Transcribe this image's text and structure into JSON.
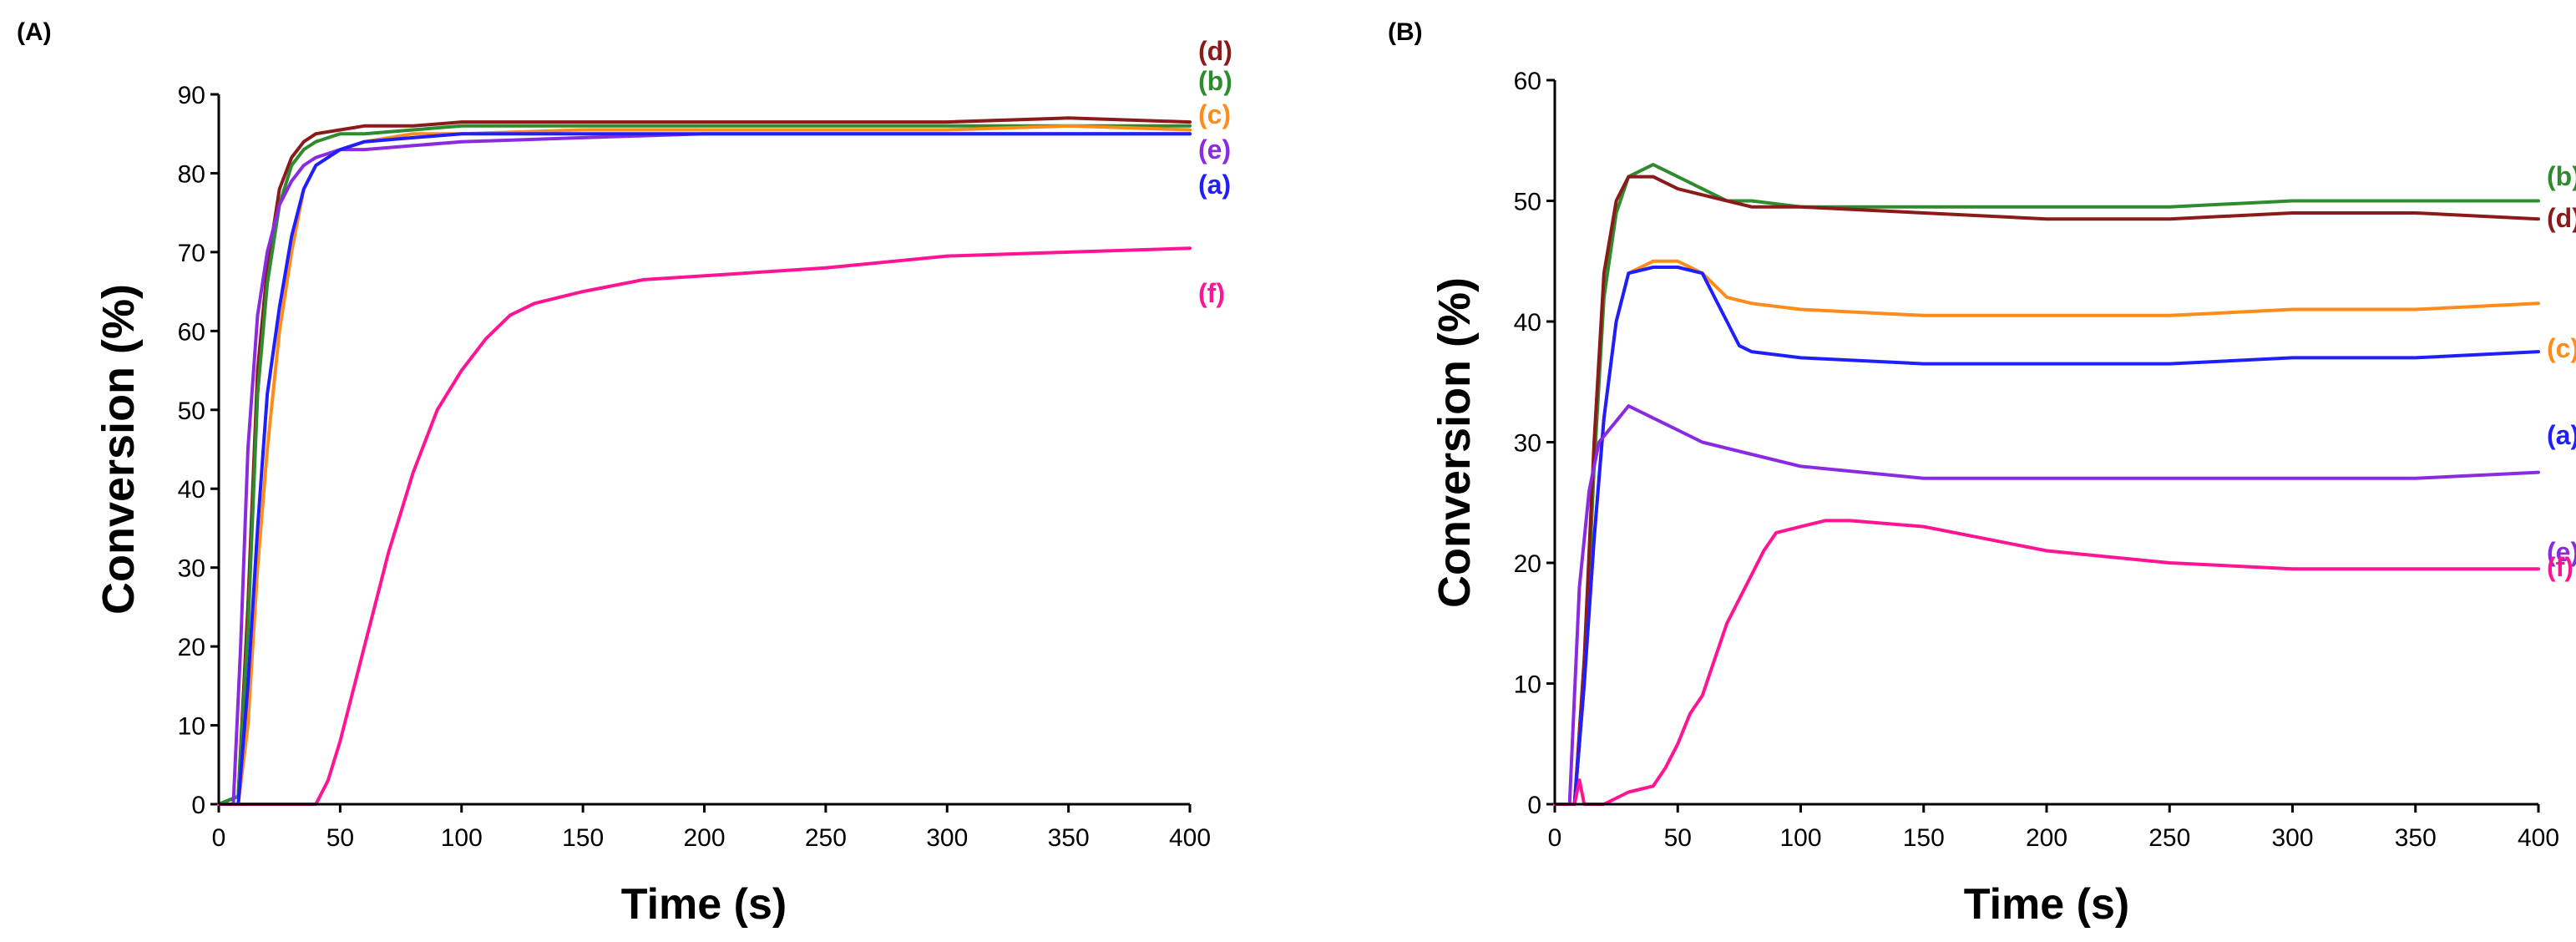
{
  "chart_data": [
    {
      "panel_label": "(A)",
      "type": "line",
      "xlabel": "Time (s)",
      "ylabel": "Conversion (%)",
      "xlim": [
        0,
        400
      ],
      "ylim": [
        0,
        90
      ],
      "xticks": [
        0,
        50,
        100,
        150,
        200,
        250,
        300,
        350,
        400
      ],
      "yticks": [
        0,
        10,
        20,
        30,
        40,
        50,
        60,
        70,
        80,
        90
      ],
      "grid": false,
      "legend_placement": "right",
      "series": [
        {
          "name": "(d)",
          "color": "#8B1A1A",
          "x": [
            0,
            8,
            12,
            16,
            20,
            25,
            30,
            35,
            40,
            50,
            60,
            80,
            100,
            150,
            200,
            250,
            300,
            350,
            400
          ],
          "y": [
            0,
            1,
            25,
            55,
            68,
            78,
            82,
            84,
            85,
            85.5,
            86,
            86,
            86.5,
            86.5,
            86.5,
            86.5,
            86.5,
            87,
            86.5
          ]
        },
        {
          "name": "(b)",
          "color": "#2E8B2E",
          "x": [
            0,
            8,
            12,
            16,
            20,
            25,
            30,
            35,
            40,
            50,
            60,
            80,
            100,
            150,
            200,
            250,
            300,
            350,
            400
          ],
          "y": [
            0,
            1,
            22,
            52,
            66,
            76,
            81,
            83,
            84,
            85,
            85,
            85.5,
            86,
            86,
            86,
            86,
            86,
            86,
            86
          ]
        },
        {
          "name": "(c)",
          "color": "#FF8C1A",
          "x": [
            0,
            8,
            12,
            16,
            20,
            25,
            30,
            35,
            40,
            50,
            60,
            80,
            100,
            150,
            200,
            250,
            300,
            350,
            400
          ],
          "y": [
            0,
            0,
            10,
            30,
            45,
            60,
            70,
            78,
            81,
            83,
            84,
            85,
            85,
            85.5,
            85.5,
            85.5,
            85.5,
            86,
            85.5
          ]
        },
        {
          "name": "(e)",
          "color": "#8A2BE2",
          "x": [
            0,
            6,
            9,
            12,
            16,
            20,
            25,
            30,
            35,
            40,
            50,
            60,
            80,
            100,
            150,
            200,
            250,
            300,
            350,
            400
          ],
          "y": [
            0,
            0,
            20,
            45,
            62,
            70,
            76,
            79,
            81,
            82,
            83,
            83,
            83.5,
            84,
            84.5,
            85,
            85,
            85,
            85,
            85
          ]
        },
        {
          "name": "(a)",
          "color": "#1E1EFF",
          "x": [
            0,
            8,
            12,
            16,
            20,
            25,
            30,
            35,
            40,
            50,
            60,
            80,
            100,
            150,
            200,
            250,
            300,
            350,
            400
          ],
          "y": [
            0,
            0,
            15,
            35,
            52,
            63,
            72,
            78,
            81,
            83,
            84,
            84.5,
            85,
            85,
            85,
            85,
            85,
            85,
            85
          ]
        },
        {
          "name": "(f)",
          "color": "#FF1493",
          "x": [
            0,
            40,
            45,
            50,
            55,
            60,
            65,
            70,
            75,
            80,
            90,
            100,
            110,
            120,
            130,
            150,
            175,
            200,
            250,
            300,
            350,
            400
          ],
          "y": [
            0,
            0,
            3,
            8,
            14,
            20,
            26,
            32,
            37,
            42,
            50,
            55,
            59,
            62,
            63.5,
            65,
            66.5,
            67,
            68,
            69.5,
            70,
            70.5
          ]
        }
      ]
    },
    {
      "panel_label": "(B)",
      "type": "line",
      "xlabel": "Time (s)",
      "ylabel": "Conversion (%)",
      "xlim": [
        0,
        400
      ],
      "ylim": [
        0,
        60
      ],
      "xticks": [
        0,
        50,
        100,
        150,
        200,
        250,
        300,
        350,
        400
      ],
      "yticks": [
        0,
        10,
        20,
        30,
        40,
        50,
        60
      ],
      "grid": false,
      "legend_placement": "right",
      "series": [
        {
          "name": "(b)",
          "color": "#2E8B2E",
          "x": [
            0,
            8,
            12,
            16,
            20,
            25,
            30,
            40,
            50,
            60,
            70,
            80,
            100,
            150,
            200,
            250,
            300,
            350,
            400
          ],
          "y": [
            0,
            0,
            10,
            28,
            42,
            49,
            52,
            53,
            52,
            51,
            50,
            50,
            49.5,
            49.5,
            49.5,
            49.5,
            50,
            50,
            50
          ]
        },
        {
          "name": "(d)",
          "color": "#8B1A1A",
          "x": [
            0,
            8,
            12,
            16,
            20,
            25,
            30,
            40,
            50,
            60,
            70,
            80,
            100,
            150,
            200,
            250,
            300,
            350,
            400
          ],
          "y": [
            0,
            0,
            12,
            30,
            44,
            50,
            52,
            52,
            51,
            50.5,
            50,
            49.5,
            49.5,
            49,
            48.5,
            48.5,
            49,
            49,
            48.5
          ]
        },
        {
          "name": "(c)",
          "color": "#FF8C1A",
          "x": [
            0,
            8,
            12,
            16,
            20,
            25,
            30,
            40,
            50,
            60,
            70,
            80,
            100,
            150,
            200,
            250,
            300,
            350,
            400
          ],
          "y": [
            0,
            0,
            10,
            22,
            32,
            40,
            44,
            45,
            45,
            44,
            42,
            41.5,
            41,
            40.5,
            40.5,
            40.5,
            41,
            41,
            41.5
          ]
        },
        {
          "name": "(a)",
          "color": "#1E1EFF",
          "x": [
            0,
            8,
            12,
            16,
            20,
            25,
            30,
            40,
            50,
            60,
            65,
            70,
            75,
            80,
            100,
            150,
            200,
            250,
            300,
            350,
            400
          ],
          "y": [
            0,
            0,
            10,
            22,
            32,
            40,
            44,
            44.5,
            44.5,
            44,
            42,
            40,
            38,
            37.5,
            37,
            36.5,
            36.5,
            36.5,
            37,
            37,
            37.5
          ]
        },
        {
          "name": "(e)",
          "color": "#8A2BE2",
          "x": [
            0,
            6,
            10,
            14,
            18,
            22,
            26,
            30,
            40,
            50,
            60,
            80,
            100,
            150,
            200,
            250,
            300,
            350,
            400
          ],
          "y": [
            0,
            0,
            18,
            26,
            30,
            31,
            32,
            33,
            32,
            31,
            30,
            29,
            28,
            27,
            27,
            27,
            27,
            27,
            27.5
          ]
        },
        {
          "name": "(f)",
          "color": "#FF1493",
          "x": [
            0,
            8,
            10,
            12,
            15,
            20,
            30,
            40,
            45,
            50,
            55,
            60,
            65,
            70,
            75,
            80,
            85,
            90,
            100,
            110,
            120,
            150,
            200,
            250,
            300,
            350,
            400
          ],
          "y": [
            0,
            0,
            2,
            0,
            0,
            0,
            1,
            1.5,
            3,
            5,
            7.5,
            9,
            12,
            15,
            17,
            19,
            21,
            22.5,
            23,
            23.5,
            23.5,
            23,
            21,
            20,
            19.5,
            19.5,
            19.5
          ]
        }
      ]
    }
  ]
}
